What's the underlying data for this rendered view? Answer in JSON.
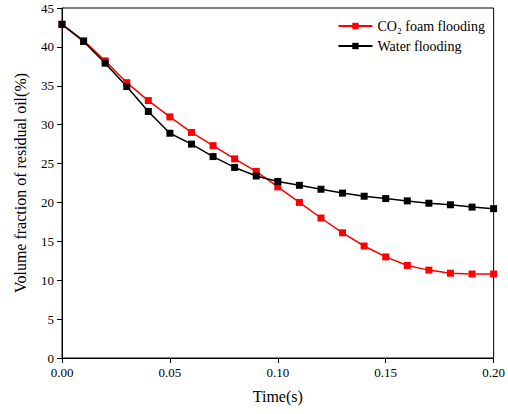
{
  "chart_data": {
    "type": "line",
    "x_label": "Time(s)",
    "y_label": "Volume fraction of residual oil(%)",
    "x": [
      0,
      0.01,
      0.02,
      0.03,
      0.04,
      0.05,
      0.06,
      0.07,
      0.08,
      0.09,
      0.1,
      0.11,
      0.12,
      0.13,
      0.14,
      0.15,
      0.16,
      0.17,
      0.18,
      0.19,
      0.2
    ],
    "series": [
      {
        "name": "CO₂ foam flooding",
        "color": "#ff0000",
        "marker": "square",
        "values": [
          42.9,
          40.8,
          38.2,
          35.4,
          33.1,
          31.0,
          29.0,
          27.3,
          25.6,
          24.0,
          22.0,
          20.0,
          18.0,
          16.1,
          14.4,
          13.0,
          11.9,
          11.3,
          10.9,
          10.8,
          10.8
        ]
      },
      {
        "name": "Water flooding",
        "color": "#000000",
        "marker": "square",
        "values": [
          42.9,
          40.7,
          37.9,
          34.9,
          31.7,
          28.9,
          27.5,
          25.9,
          24.5,
          23.4,
          22.7,
          22.2,
          21.7,
          21.2,
          20.8,
          20.5,
          20.2,
          19.9,
          19.7,
          19.4,
          19.2
        ]
      }
    ],
    "xlim": [
      0,
      0.2
    ],
    "xticks": [
      {
        "value": 0,
        "label": "0.00"
      },
      0.05,
      {
        "value": 0.1,
        "label": "0.10"
      },
      0.15,
      {
        "value": 0.2,
        "label": "0.20"
      }
    ],
    "ylim": [
      0,
      45
    ],
    "yticks": [
      0,
      5,
      10,
      15,
      20,
      25,
      30,
      35,
      40,
      45
    ],
    "grid": false,
    "legend": "upper right"
  }
}
